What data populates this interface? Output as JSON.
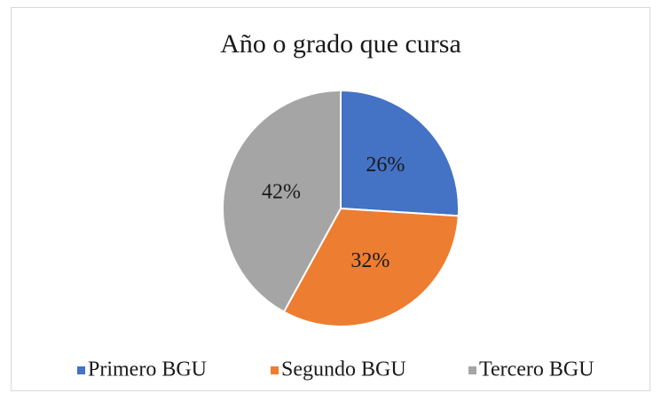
{
  "chart_data": {
    "type": "pie",
    "title": "Año o grado que cursa",
    "categories": [
      "Primero BGU",
      "Segundo BGU",
      "Tercero BGU"
    ],
    "values": [
      26,
      32,
      42
    ],
    "value_labels": [
      "26%",
      "32%",
      "42%"
    ],
    "colors": [
      "#4472c4",
      "#ed7d31",
      "#a5a5a5"
    ],
    "legend": "bottom"
  }
}
